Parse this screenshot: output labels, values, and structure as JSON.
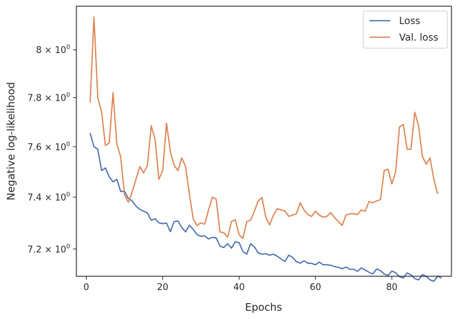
{
  "chart_data": {
    "type": "line",
    "xlabel": "Epochs",
    "ylabel": "Negative log-likelihood",
    "xlim": [
      -2.6,
      95.6
    ],
    "ylim": [
      7.0965,
      8.1865
    ],
    "y_scale": "log",
    "grid": false,
    "legend_position": "top-right",
    "x_ticks": [
      {
        "value": 0,
        "label": "0"
      },
      {
        "value": 20,
        "label": "20"
      },
      {
        "value": 40,
        "label": "40"
      },
      {
        "value": 60,
        "label": "60"
      },
      {
        "value": 80,
        "label": "80"
      }
    ],
    "y_ticks": [
      {
        "value": 7.2,
        "base": "7.2",
        "exp": "0"
      },
      {
        "value": 7.4,
        "base": "7.4",
        "exp": "0"
      },
      {
        "value": 7.6,
        "base": "7.6",
        "exp": "0"
      },
      {
        "value": 7.8,
        "base": "7.8",
        "exp": "0"
      },
      {
        "value": 8.0,
        "base": "8",
        "exp": "0"
      }
    ],
    "series": [
      {
        "name": "Loss",
        "color": "#4c72b0",
        "x_start": 1,
        "values": [
          7.655,
          7.6,
          7.59,
          7.505,
          7.515,
          7.48,
          7.46,
          7.47,
          7.422,
          7.423,
          7.395,
          7.385,
          7.365,
          7.352,
          7.345,
          7.338,
          7.31,
          7.316,
          7.3,
          7.297,
          7.299,
          7.266,
          7.305,
          7.307,
          7.282,
          7.265,
          7.291,
          7.274,
          7.255,
          7.248,
          7.25,
          7.238,
          7.244,
          7.242,
          7.211,
          7.205,
          7.22,
          7.203,
          7.227,
          7.224,
          7.19,
          7.18,
          7.22,
          7.208,
          7.185,
          7.18,
          7.182,
          7.176,
          7.18,
          7.172,
          7.162,
          7.152,
          7.176,
          7.168,
          7.152,
          7.146,
          7.155,
          7.146,
          7.145,
          7.14,
          7.15,
          7.14,
          7.14,
          7.138,
          7.133,
          7.13,
          7.125,
          7.131,
          7.123,
          7.123,
          7.115,
          7.128,
          7.12,
          7.112,
          7.105,
          7.124,
          7.118,
          7.105,
          7.1,
          7.116,
          7.11,
          7.095,
          7.09,
          7.109,
          7.102,
          7.088,
          7.083,
          7.103,
          7.096,
          7.083,
          7.078,
          7.097,
          7.09
        ]
      },
      {
        "name": "Val. loss",
        "color": "#dd8452",
        "x_start": 1,
        "values": [
          7.78,
          8.14,
          7.8,
          7.74,
          7.605,
          7.615,
          7.82,
          7.61,
          7.56,
          7.41,
          7.38,
          7.42,
          7.47,
          7.52,
          7.495,
          7.525,
          7.685,
          7.63,
          7.47,
          7.505,
          7.695,
          7.58,
          7.525,
          7.505,
          7.555,
          7.52,
          7.41,
          7.315,
          7.29,
          7.3,
          7.295,
          7.35,
          7.4,
          7.392,
          7.265,
          7.262,
          7.245,
          7.305,
          7.312,
          7.255,
          7.24,
          7.305,
          7.31,
          7.345,
          7.385,
          7.398,
          7.322,
          7.292,
          7.33,
          7.355,
          7.35,
          7.347,
          7.325,
          7.33,
          7.335,
          7.378,
          7.35,
          7.332,
          7.325,
          7.345,
          7.33,
          7.322,
          7.325,
          7.34,
          7.32,
          7.305,
          7.29,
          7.33,
          7.335,
          7.335,
          7.332,
          7.35,
          7.345,
          7.382,
          7.378,
          7.385,
          7.39,
          7.505,
          7.51,
          7.452,
          7.5,
          7.68,
          7.69,
          7.59,
          7.59,
          7.74,
          7.685,
          7.56,
          7.53,
          7.555,
          7.47,
          7.412
        ]
      }
    ]
  }
}
